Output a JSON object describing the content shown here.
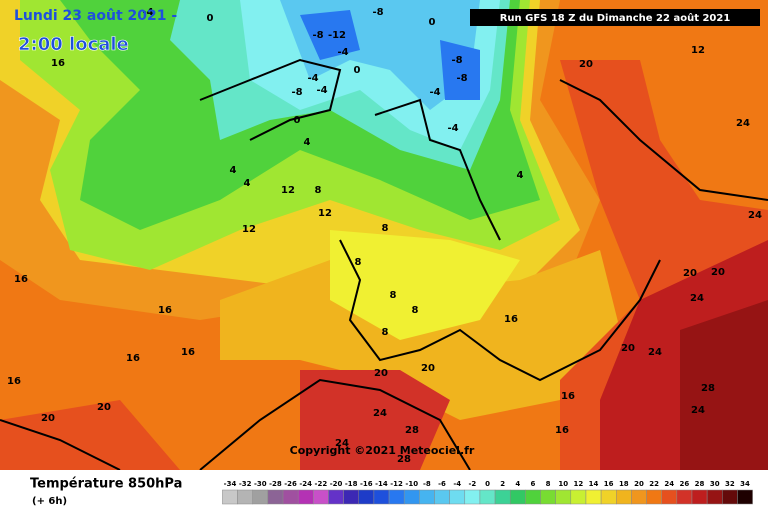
{
  "header": {
    "date_line": "Lundi 23 août 2021 -",
    "time_line": "2:00 locale",
    "run": "Run GFS 18 Z du Dimanche 22 août 2021"
  },
  "copyright": "Copyright ©2021 Meteociel.fr",
  "footer": {
    "title": "Température 850hPa",
    "lead": "(+ 6h)"
  },
  "legend": {
    "values": [
      -34,
      -32,
      -30,
      -28,
      -26,
      -24,
      -22,
      -20,
      -18,
      -16,
      -14,
      -12,
      -10,
      -8,
      -6,
      -4,
      -2,
      0,
      2,
      4,
      6,
      8,
      10,
      12,
      14,
      16,
      18,
      20,
      22,
      24,
      26,
      28,
      30,
      32,
      34
    ],
    "colors": [
      "#c8c8c8",
      "#b4b4b4",
      "#a0a0a0",
      "#8c6496",
      "#a050a0",
      "#b432b4",
      "#c850c8",
      "#6432c8",
      "#3c28b4",
      "#1e3cc8",
      "#1e50dc",
      "#2878f0",
      "#3296f0",
      "#46b4f0",
      "#5ac8f0",
      "#6edcf0",
      "#82f0f0",
      "#64e6c8",
      "#3cd296",
      "#32c864",
      "#50d23c",
      "#78dc32",
      "#a0e632",
      "#c8f032",
      "#f0f032",
      "#f0d228",
      "#f0b41e",
      "#f0961e",
      "#f07814",
      "#e6501e",
      "#d23228",
      "#be1e1e",
      "#961414",
      "#640a0a",
      "#1e0000"
    ]
  },
  "contour_labels": [
    0,
    0,
    0,
    -8,
    -4,
    -12,
    -8,
    -4,
    -8,
    -8,
    -4,
    -4,
    -8,
    -4,
    -4,
    0,
    0,
    4,
    4,
    4,
    4,
    8,
    12,
    12,
    12,
    12,
    16,
    16,
    16,
    16,
    16,
    16,
    16,
    16,
    16,
    20,
    20,
    20,
    20,
    20,
    20,
    20,
    20,
    24,
    24,
    24,
    24,
    24,
    24,
    28,
    28,
    28,
    24,
    8,
    8,
    8,
    8,
    8
  ]
}
